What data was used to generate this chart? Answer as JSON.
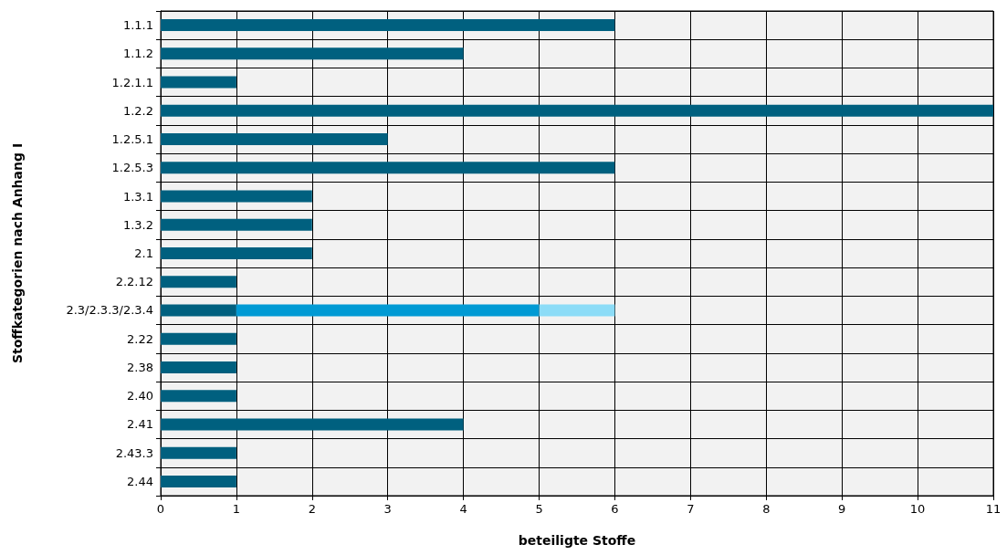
{
  "chart_data": {
    "type": "bar",
    "orientation": "horizontal",
    "stacked": true,
    "xlabel": "beteiligte Stoffe",
    "ylabel": "Stoffkategorien nach Anhang I",
    "categories": [
      "1.1.1",
      "1.1.2",
      "1.2.1.1",
      "1.2.2",
      "1.2.5.1",
      "1.2.5.3",
      "1.3.1",
      "1.3.2",
      "2.1",
      "2.2.12",
      "2.3/2.3.3/2.3.4",
      "2.22",
      "2.38",
      "2.40",
      "2.41",
      "2.43.3",
      "2.44"
    ],
    "series": [
      {
        "color": "#00607f",
        "values": [
          6,
          4,
          1,
          11,
          3,
          6,
          2,
          2,
          2,
          1,
          1,
          1,
          1,
          1,
          4,
          1,
          1
        ]
      },
      {
        "color": "#009ad4",
        "values": [
          null,
          null,
          null,
          null,
          null,
          null,
          null,
          null,
          null,
          null,
          4,
          null,
          null,
          null,
          null,
          null,
          null
        ]
      },
      {
        "color": "#8cdcf7",
        "values": [
          null,
          null,
          null,
          null,
          null,
          null,
          null,
          null,
          null,
          null,
          1,
          null,
          null,
          null,
          null,
          null,
          null
        ]
      }
    ],
    "xlim": [
      0,
      11
    ],
    "xticks": [
      0,
      1,
      2,
      3,
      4,
      5,
      6,
      7,
      8,
      9,
      10,
      11
    ],
    "grid": true
  }
}
